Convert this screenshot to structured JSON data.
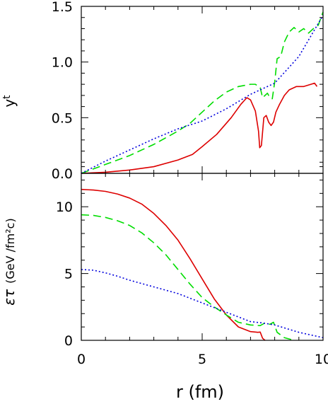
{
  "chart_data": [
    {
      "type": "line",
      "ylabel_main": "y",
      "ylabel_sub": "t",
      "xlim": [
        0,
        10
      ],
      "ylim": [
        0,
        1.5
      ],
      "x_ticks": [
        "0",
        "5",
        "10"
      ],
      "y_ticks": [
        "0.0",
        "0.5",
        "1.0",
        "1.5"
      ],
      "series": [
        {
          "color": "#dd0000",
          "style": "solid",
          "x": [
            0,
            1,
            2,
            3,
            4,
            4.6,
            5,
            5.6,
            6.2,
            6.6,
            6.85,
            7.0,
            7.2,
            7.33,
            7.38,
            7.45,
            7.55,
            7.65,
            7.75,
            7.85,
            7.95,
            8.05,
            8.2,
            8.4,
            8.6,
            8.9,
            9.2,
            9.5,
            9.65,
            9.75
          ],
          "y": [
            0,
            0.01,
            0.03,
            0.06,
            0.12,
            0.17,
            0.24,
            0.35,
            0.5,
            0.62,
            0.68,
            0.66,
            0.56,
            0.38,
            0.23,
            0.25,
            0.5,
            0.52,
            0.46,
            0.43,
            0.46,
            0.55,
            0.62,
            0.7,
            0.75,
            0.78,
            0.78,
            0.8,
            0.81,
            0.78
          ]
        },
        {
          "color": "#00dd00",
          "style": "dashed",
          "x": [
            0,
            0.5,
            1,
            1.5,
            2,
            2.5,
            3,
            3.5,
            4,
            4.5,
            5,
            5.5,
            6,
            6.5,
            7,
            7.2,
            7.4,
            7.5,
            7.6,
            7.7,
            7.8,
            7.9,
            8.0,
            8.1,
            8.25,
            8.4,
            8.6,
            8.8,
            9.0,
            9.2,
            9.4,
            9.6,
            9.8,
            10.0
          ],
          "y": [
            0,
            0.04,
            0.08,
            0.12,
            0.16,
            0.21,
            0.26,
            0.32,
            0.38,
            0.45,
            0.55,
            0.65,
            0.73,
            0.78,
            0.8,
            0.8,
            0.77,
            0.68,
            0.7,
            0.72,
            0.68,
            0.67,
            0.82,
            1.03,
            1.05,
            1.18,
            1.27,
            1.31,
            1.27,
            1.3,
            1.26,
            1.3,
            1.33,
            1.45
          ]
        },
        {
          "color": "#0000dd",
          "style": "dotted",
          "x": [
            0,
            1,
            2,
            3,
            4,
            5,
            6,
            7,
            8,
            9,
            10
          ],
          "y": [
            0,
            0.11,
            0.21,
            0.31,
            0.4,
            0.47,
            0.58,
            0.71,
            0.81,
            1.05,
            1.42
          ]
        }
      ]
    },
    {
      "type": "line",
      "ylabel_main": "ετ",
      "ylabel_units": "(GeV /fm²c)",
      "xlabel": "r  (fm)",
      "xlim": [
        0,
        10
      ],
      "ylim": [
        0,
        12.5
      ],
      "x_ticks": [
        "0",
        "5",
        "10"
      ],
      "y_ticks": [
        "0",
        "5",
        "10"
      ],
      "series": [
        {
          "color": "#dd0000",
          "style": "solid",
          "x": [
            0,
            0.5,
            1,
            1.5,
            2,
            2.5,
            3,
            3.5,
            4,
            4.5,
            5,
            5.5,
            6,
            6.5,
            7,
            7.2,
            7.3,
            7.4,
            7.5,
            7.6
          ],
          "y": [
            11.3,
            11.25,
            11.15,
            10.95,
            10.65,
            10.2,
            9.5,
            8.6,
            7.5,
            6.1,
            4.6,
            3.1,
            1.9,
            1.0,
            0.65,
            0.62,
            0.6,
            0.62,
            0.15,
            0.0
          ]
        },
        {
          "color": "#00dd00",
          "style": "dashed",
          "x": [
            0,
            0.5,
            1,
            1.5,
            2,
            2.5,
            3,
            3.5,
            4,
            4.5,
            5,
            5.5,
            6,
            6.5,
            7,
            7.4,
            7.5,
            7.6,
            7.8,
            7.95,
            8.1,
            8.4,
            8.8
          ],
          "y": [
            9.4,
            9.35,
            9.2,
            8.95,
            8.6,
            8.05,
            7.3,
            6.4,
            5.3,
            4.2,
            3.2,
            2.5,
            1.9,
            1.35,
            1.15,
            1.1,
            1.2,
            1.3,
            1.2,
            1.35,
            0.6,
            0.2,
            0.0
          ]
        },
        {
          "color": "#0000dd",
          "style": "dotted",
          "x": [
            0,
            0.5,
            1,
            1.5,
            2,
            3,
            4,
            5,
            6,
            7,
            7.5,
            8,
            9,
            10
          ],
          "y": [
            5.3,
            5.25,
            5.05,
            4.8,
            4.5,
            4.0,
            3.5,
            2.8,
            2.1,
            1.4,
            1.3,
            1.15,
            0.6,
            0.2
          ]
        }
      ]
    }
  ]
}
